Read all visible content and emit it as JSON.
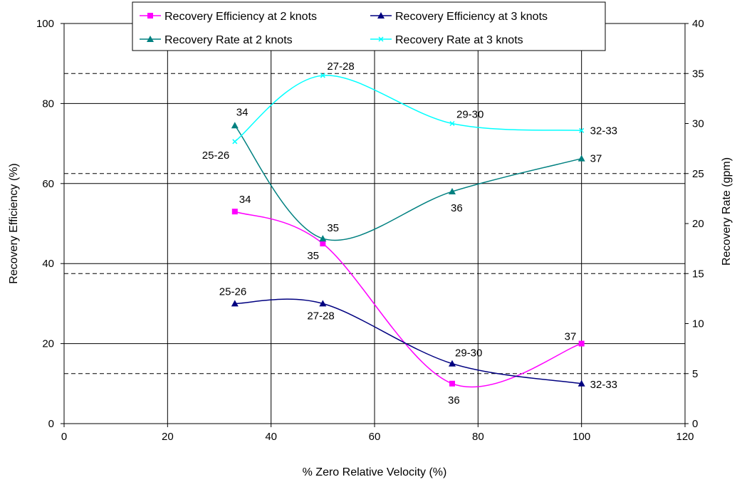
{
  "chart_data": {
    "type": "line",
    "xlabel": "% Zero Relative Velocity (%)",
    "ylabel_left": "Recovery Efficiency (%)",
    "ylabel_right": "Recovery Rate (gpm)",
    "xlim": [
      0,
      120
    ],
    "ylim_left": [
      0,
      100
    ],
    "ylim_right": [
      0,
      40
    ],
    "x_ticks": [
      "0",
      "20",
      "40",
      "60",
      "80",
      "100",
      "120"
    ],
    "y_left_ticks": [
      "0",
      "20",
      "40",
      "60",
      "80",
      "100"
    ],
    "y_right_ticks": [
      "0",
      "5",
      "10",
      "15",
      "20",
      "25",
      "30",
      "35",
      "40"
    ],
    "grid": true,
    "legend_position": "top-center",
    "series": [
      {
        "name": "Recovery Efficiency at 2 knots",
        "axis": "left",
        "color": "#ff00ff",
        "marker": "square",
        "x": [
          33,
          50,
          75,
          100
        ],
        "y": [
          53,
          45,
          10,
          20
        ],
        "labels": [
          "34",
          "35",
          "36",
          "37"
        ]
      },
      {
        "name": "Recovery Efficiency at 3 knots",
        "axis": "left",
        "color": "#000080",
        "marker": "triangle",
        "x": [
          33,
          50,
          75,
          100
        ],
        "y": [
          30,
          30,
          15,
          10
        ],
        "labels": [
          "25-26",
          "27-28",
          "29-30",
          "32-33"
        ]
      },
      {
        "name": "Recovery Rate at 2 knots",
        "axis": "right",
        "color": "#008080",
        "marker": "triangle",
        "x": [
          33,
          50,
          75,
          100
        ],
        "y": [
          29.8,
          18.5,
          23.2,
          26.5
        ],
        "labels": [
          "34",
          "35",
          "36",
          "37"
        ]
      },
      {
        "name": "Recovery Rate at 3 knots",
        "axis": "right",
        "color": "#00ffff",
        "marker": "x",
        "x": [
          33,
          50,
          75,
          100
        ],
        "y": [
          28.2,
          34.8,
          30.0,
          29.3
        ],
        "labels": [
          "25-26",
          "27-28",
          "29-30",
          "32-33"
        ]
      }
    ]
  }
}
